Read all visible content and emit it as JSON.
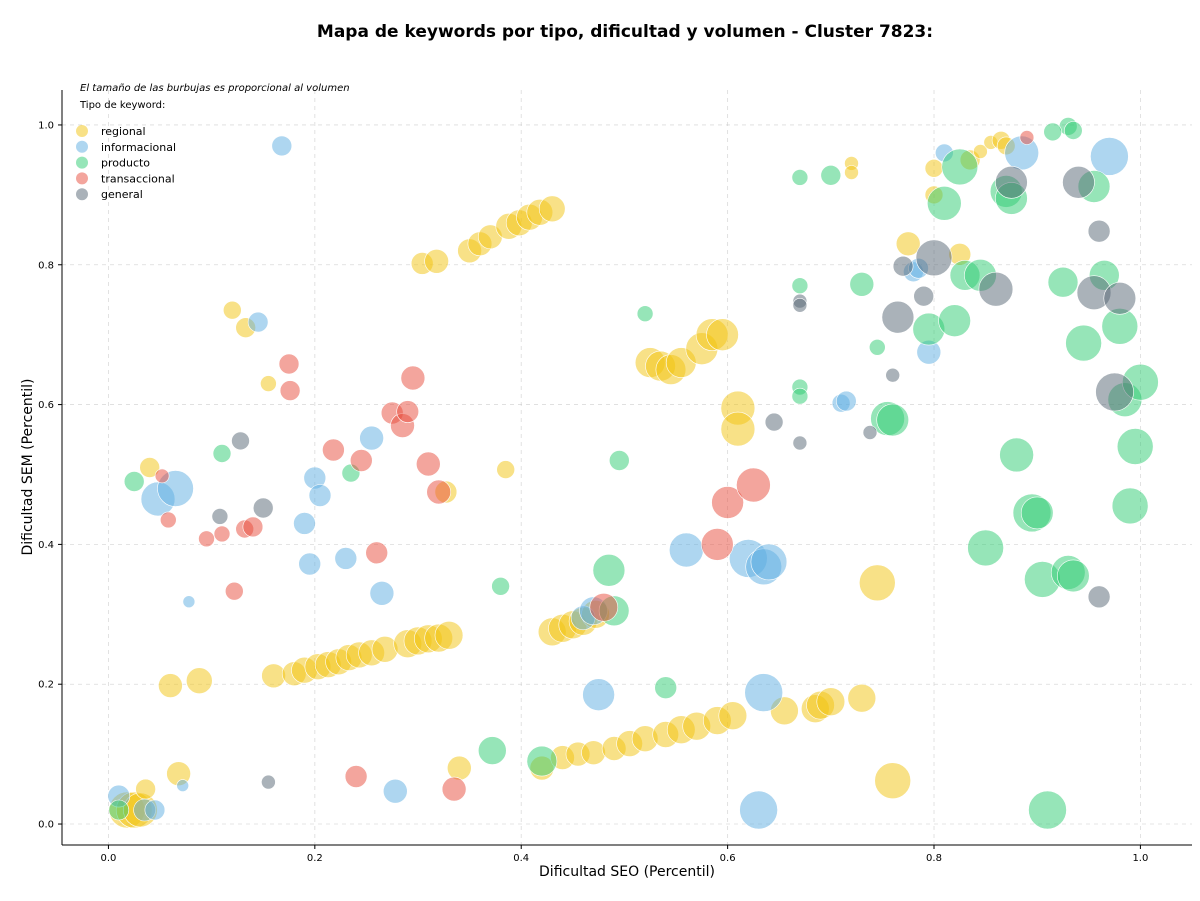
{
  "chart_data": {
    "type": "scatter",
    "title": "Mapa de keywords por tipo, dificultad y volumen - Cluster 7823:",
    "xlabel": "Dificultad SEO (Percentil)",
    "ylabel": "Dificultad SEM (Percentil)",
    "xlim": [
      -0.045,
      1.05
    ],
    "ylim": [
      -0.03,
      1.05
    ],
    "x_ticks": [
      "0.0",
      "0.2",
      "0.4",
      "0.6",
      "0.8",
      "1.0"
    ],
    "y_ticks": [
      "0.0",
      "0.2",
      "0.4",
      "0.6",
      "0.8",
      "1.0"
    ],
    "grid": true,
    "note": "El tamaño de las burbujas es proporcional al volumen",
    "legend_title": "Tipo de keyword:",
    "legend_position": "top-left",
    "series": [
      {
        "name": "regional",
        "color": "#f1c40f",
        "points": [
          [
            0.018,
            0.02,
            18
          ],
          [
            0.025,
            0.02,
            18
          ],
          [
            0.031,
            0.02,
            17
          ],
          [
            0.036,
            0.05,
            10
          ],
          [
            0.06,
            0.198,
            12
          ],
          [
            0.068,
            0.072,
            12
          ],
          [
            0.088,
            0.205,
            13
          ],
          [
            0.16,
            0.212,
            12
          ],
          [
            0.18,
            0.215,
            12
          ],
          [
            0.19,
            0.22,
            13
          ],
          [
            0.203,
            0.225,
            13
          ],
          [
            0.213,
            0.228,
            13
          ],
          [
            0.223,
            0.232,
            13
          ],
          [
            0.233,
            0.238,
            13
          ],
          [
            0.243,
            0.242,
            13
          ],
          [
            0.255,
            0.245,
            13
          ],
          [
            0.268,
            0.25,
            13
          ],
          [
            0.29,
            0.258,
            14
          ],
          [
            0.3,
            0.262,
            14
          ],
          [
            0.31,
            0.265,
            14
          ],
          [
            0.32,
            0.266,
            14
          ],
          [
            0.33,
            0.27,
            14
          ],
          [
            0.04,
            0.51,
            10
          ],
          [
            0.12,
            0.735,
            9
          ],
          [
            0.133,
            0.71,
            10
          ],
          [
            0.155,
            0.63,
            8
          ],
          [
            0.304,
            0.802,
            11
          ],
          [
            0.318,
            0.805,
            12
          ],
          [
            0.327,
            0.475,
            11
          ],
          [
            0.35,
            0.82,
            12
          ],
          [
            0.36,
            0.83,
            12
          ],
          [
            0.37,
            0.84,
            12
          ],
          [
            0.388,
            0.855,
            13
          ],
          [
            0.398,
            0.86,
            13
          ],
          [
            0.408,
            0.868,
            13
          ],
          [
            0.418,
            0.875,
            13
          ],
          [
            0.43,
            0.88,
            13
          ],
          [
            0.385,
            0.507,
            9
          ],
          [
            0.34,
            0.08,
            12
          ],
          [
            0.42,
            0.08,
            12
          ],
          [
            0.43,
            0.275,
            14
          ],
          [
            0.44,
            0.28,
            14
          ],
          [
            0.45,
            0.285,
            14
          ],
          [
            0.46,
            0.29,
            14
          ],
          [
            0.472,
            0.3,
            14
          ],
          [
            0.44,
            0.095,
            12
          ],
          [
            0.455,
            0.1,
            12
          ],
          [
            0.47,
            0.102,
            12
          ],
          [
            0.49,
            0.108,
            12
          ],
          [
            0.505,
            0.115,
            13
          ],
          [
            0.52,
            0.122,
            13
          ],
          [
            0.54,
            0.128,
            13
          ],
          [
            0.555,
            0.135,
            14
          ],
          [
            0.57,
            0.14,
            14
          ],
          [
            0.59,
            0.148,
            14
          ],
          [
            0.605,
            0.155,
            14
          ],
          [
            0.525,
            0.66,
            15
          ],
          [
            0.535,
            0.655,
            15
          ],
          [
            0.545,
            0.65,
            15
          ],
          [
            0.555,
            0.66,
            15
          ],
          [
            0.575,
            0.68,
            16
          ],
          [
            0.585,
            0.7,
            16
          ],
          [
            0.595,
            0.7,
            16
          ],
          [
            0.61,
            0.595,
            17
          ],
          [
            0.61,
            0.565,
            17
          ],
          [
            0.655,
            0.162,
            14
          ],
          [
            0.685,
            0.165,
            14
          ],
          [
            0.69,
            0.17,
            14
          ],
          [
            0.7,
            0.175,
            14
          ],
          [
            0.73,
            0.18,
            14
          ],
          [
            0.745,
            0.345,
            18
          ],
          [
            0.76,
            0.062,
            18
          ],
          [
            0.775,
            0.83,
            12
          ],
          [
            0.8,
            0.938,
            9
          ],
          [
            0.8,
            0.9,
            9
          ],
          [
            0.825,
            0.815,
            11
          ],
          [
            0.835,
            0.95,
            10
          ],
          [
            0.845,
            0.962,
            7
          ],
          [
            0.855,
            0.975,
            7
          ],
          [
            0.865,
            0.978,
            9
          ],
          [
            0.87,
            0.97,
            9
          ],
          [
            0.72,
            0.945,
            7
          ],
          [
            0.72,
            0.932,
            7
          ]
        ]
      },
      {
        "name": "informacional",
        "color": "#5dade2",
        "points": [
          [
            0.01,
            0.04,
            11
          ],
          [
            0.035,
            0.02,
            11
          ],
          [
            0.045,
            0.02,
            10
          ],
          [
            0.048,
            0.465,
            17
          ],
          [
            0.065,
            0.48,
            18
          ],
          [
            0.072,
            0.055,
            6
          ],
          [
            0.078,
            0.318,
            6
          ],
          [
            0.145,
            0.718,
            10
          ],
          [
            0.168,
            0.97,
            10
          ],
          [
            0.19,
            0.43,
            11
          ],
          [
            0.2,
            0.495,
            11
          ],
          [
            0.205,
            0.47,
            11
          ],
          [
            0.195,
            0.372,
            11
          ],
          [
            0.23,
            0.38,
            11
          ],
          [
            0.255,
            0.552,
            12
          ],
          [
            0.265,
            0.33,
            12
          ],
          [
            0.278,
            0.047,
            12
          ],
          [
            0.46,
            0.295,
            12
          ],
          [
            0.47,
            0.305,
            14
          ],
          [
            0.475,
            0.185,
            16
          ],
          [
            0.56,
            0.392,
            17
          ],
          [
            0.62,
            0.38,
            19
          ],
          [
            0.635,
            0.368,
            18
          ],
          [
            0.64,
            0.375,
            18
          ],
          [
            0.635,
            0.188,
            19
          ],
          [
            0.63,
            0.02,
            19
          ],
          [
            0.71,
            0.602,
            9
          ],
          [
            0.715,
            0.605,
            10
          ],
          [
            0.78,
            0.79,
            10
          ],
          [
            0.785,
            0.795,
            10
          ],
          [
            0.795,
            0.675,
            12
          ],
          [
            0.81,
            0.96,
            9
          ],
          [
            0.885,
            0.96,
            17
          ],
          [
            0.97,
            0.955,
            19
          ]
        ]
      },
      {
        "name": "producto",
        "color": "#2ecc71",
        "points": [
          [
            0.01,
            0.02,
            10
          ],
          [
            0.025,
            0.49,
            10
          ],
          [
            0.11,
            0.53,
            9
          ],
          [
            0.235,
            0.502,
            9
          ],
          [
            0.372,
            0.105,
            14
          ],
          [
            0.38,
            0.34,
            9
          ],
          [
            0.42,
            0.09,
            15
          ],
          [
            0.485,
            0.363,
            16
          ],
          [
            0.49,
            0.305,
            15
          ],
          [
            0.495,
            0.52,
            10
          ],
          [
            0.52,
            0.73,
            8
          ],
          [
            0.54,
            0.195,
            11
          ],
          [
            0.67,
            0.925,
            8
          ],
          [
            0.67,
            0.77,
            8
          ],
          [
            0.67,
            0.625,
            8
          ],
          [
            0.67,
            0.612,
            8
          ],
          [
            0.7,
            0.928,
            10
          ],
          [
            0.73,
            0.772,
            12
          ],
          [
            0.745,
            0.682,
            8
          ],
          [
            0.755,
            0.58,
            17
          ],
          [
            0.76,
            0.578,
            16
          ],
          [
            0.795,
            0.708,
            16
          ],
          [
            0.81,
            0.888,
            17
          ],
          [
            0.82,
            0.72,
            16
          ],
          [
            0.825,
            0.94,
            18
          ],
          [
            0.83,
            0.785,
            15
          ],
          [
            0.845,
            0.785,
            16
          ],
          [
            0.85,
            0.395,
            18
          ],
          [
            0.87,
            0.905,
            16
          ],
          [
            0.875,
            0.895,
            16
          ],
          [
            0.88,
            0.528,
            17
          ],
          [
            0.895,
            0.445,
            19
          ],
          [
            0.9,
            0.445,
            16
          ],
          [
            0.905,
            0.35,
            18
          ],
          [
            0.91,
            0.02,
            19
          ],
          [
            0.93,
            0.998,
            9
          ],
          [
            0.935,
            0.992,
            9
          ],
          [
            0.925,
            0.775,
            15
          ],
          [
            0.93,
            0.36,
            17
          ],
          [
            0.935,
            0.355,
            16
          ],
          [
            0.945,
            0.688,
            18
          ],
          [
            0.955,
            0.912,
            16
          ],
          [
            0.965,
            0.785,
            15
          ],
          [
            0.98,
            0.712,
            18
          ],
          [
            0.985,
            0.607,
            17
          ],
          [
            0.99,
            0.455,
            18
          ],
          [
            0.995,
            0.54,
            18
          ],
          [
            1.0,
            0.632,
            18
          ],
          [
            0.915,
            0.99,
            9
          ]
        ]
      },
      {
        "name": "transaccional",
        "color": "#e74c3c",
        "points": [
          [
            0.052,
            0.498,
            7
          ],
          [
            0.058,
            0.435,
            8
          ],
          [
            0.095,
            0.408,
            8
          ],
          [
            0.11,
            0.415,
            8
          ],
          [
            0.122,
            0.333,
            9
          ],
          [
            0.132,
            0.422,
            9
          ],
          [
            0.14,
            0.425,
            10
          ],
          [
            0.175,
            0.658,
            10
          ],
          [
            0.176,
            0.62,
            10
          ],
          [
            0.218,
            0.535,
            11
          ],
          [
            0.24,
            0.068,
            11
          ],
          [
            0.245,
            0.52,
            11
          ],
          [
            0.26,
            0.388,
            11
          ],
          [
            0.275,
            0.588,
            11
          ],
          [
            0.285,
            0.57,
            12
          ],
          [
            0.29,
            0.59,
            11
          ],
          [
            0.295,
            0.638,
            12
          ],
          [
            0.31,
            0.515,
            12
          ],
          [
            0.32,
            0.475,
            12
          ],
          [
            0.335,
            0.05,
            12
          ],
          [
            0.48,
            0.31,
            14
          ],
          [
            0.59,
            0.4,
            16
          ],
          [
            0.6,
            0.46,
            16
          ],
          [
            0.625,
            0.485,
            17
          ],
          [
            0.89,
            0.982,
            7
          ]
        ]
      },
      {
        "name": "general",
        "color": "#566573",
        "points": [
          [
            0.108,
            0.44,
            8
          ],
          [
            0.128,
            0.548,
            9
          ],
          [
            0.15,
            0.452,
            10
          ],
          [
            0.155,
            0.06,
            7
          ],
          [
            0.645,
            0.575,
            9
          ],
          [
            0.67,
            0.748,
            7
          ],
          [
            0.67,
            0.742,
            7
          ],
          [
            0.67,
            0.545,
            7
          ],
          [
            0.738,
            0.56,
            7
          ],
          [
            0.76,
            0.642,
            7
          ],
          [
            0.765,
            0.725,
            16
          ],
          [
            0.77,
            0.798,
            10
          ],
          [
            0.79,
            0.755,
            10
          ],
          [
            0.8,
            0.81,
            18
          ],
          [
            0.86,
            0.765,
            17
          ],
          [
            0.875,
            0.918,
            16
          ],
          [
            0.94,
            0.918,
            16
          ],
          [
            0.955,
            0.76,
            17
          ],
          [
            0.96,
            0.848,
            11
          ],
          [
            0.96,
            0.325,
            11
          ],
          [
            0.975,
            0.618,
            19
          ],
          [
            0.98,
            0.752,
            16
          ]
        ]
      }
    ]
  }
}
